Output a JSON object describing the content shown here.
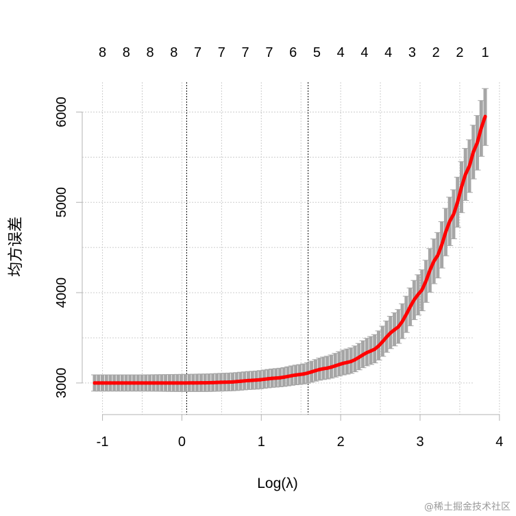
{
  "chart_data": {
    "type": "line",
    "xlabel": "Log(λ)",
    "ylabel": "均方误差",
    "xlim": [
      -1.1,
      3.82
    ],
    "ylim": [
      2650,
      6330
    ],
    "xticks": [
      -1,
      0,
      1,
      2,
      3,
      4
    ],
    "yticks": [
      3000,
      4000,
      5000,
      6000
    ],
    "grid": true,
    "top_axis": {
      "x": [
        -1.0,
        -0.7,
        -0.4,
        -0.1,
        0.2,
        0.5,
        0.8,
        1.1,
        1.4,
        1.7,
        2.0,
        2.3,
        2.6,
        2.9,
        3.2,
        3.5,
        3.82
      ],
      "labels": [
        "8",
        "8",
        "8",
        "8",
        "7",
        "7",
        "7",
        "7",
        "6",
        "5",
        "4",
        "4",
        "4",
        "3",
        "2",
        "2",
        "1"
      ]
    },
    "vlines": [
      0.06,
      1.59
    ],
    "series": [
      {
        "x": [
          -1.1,
          -0.5,
          0.0,
          0.3,
          0.6,
          0.9,
          1.2,
          1.5,
          1.8,
          2.1,
          2.4,
          2.7,
          3.0,
          3.2,
          3.4,
          3.6,
          3.7,
          3.82
        ],
        "values": [
          3000,
          3000,
          3000,
          3002,
          3010,
          3030,
          3055,
          3095,
          3160,
          3230,
          3360,
          3600,
          4000,
          4380,
          4830,
          5360,
          5620,
          5950
        ],
        "band_lower": [
          2910,
          2910,
          2905,
          2905,
          2912,
          2930,
          2955,
          2985,
          3040,
          3100,
          3210,
          3420,
          3770,
          4130,
          4560,
          5070,
          5320,
          5630
        ],
        "band_upper": [
          3090,
          3090,
          3095,
          3100,
          3110,
          3130,
          3160,
          3205,
          3290,
          3380,
          3520,
          3790,
          4220,
          4630,
          5100,
          5650,
          5920,
          6260
        ]
      }
    ],
    "colors": {
      "line": "#ff0000",
      "band": "#a6a6a6",
      "grid": "#cccccc",
      "axis": "#b3b3b3",
      "vline": "#000000"
    }
  },
  "watermark": "@稀土掘金技术社区"
}
